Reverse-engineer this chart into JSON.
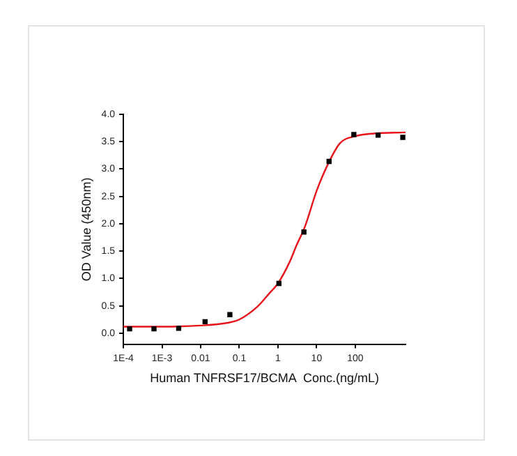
{
  "chart_data": {
    "type": "scatter",
    "xlabel": "Human TNFRSF17/BCMA  Conc.(ng/mL)",
    "ylabel": "OD Value (450nm)",
    "log": "x",
    "xlim": [
      0.0001,
      2000
    ],
    "ylim": [
      -0.2,
      4.0
    ],
    "xticks": [
      {
        "value": 0.0001,
        "label": "1E-4"
      },
      {
        "value": 0.001,
        "label": "1E-3"
      },
      0.01,
      0.1,
      1,
      10,
      100
    ],
    "yticks": [
      {
        "value": 0,
        "label": "0.0"
      },
      0.5,
      {
        "value": 1,
        "label": "1.0"
      },
      1.5,
      {
        "value": 2,
        "label": "2.0"
      },
      2.5,
      {
        "value": 3,
        "label": "3.0"
      },
      3.5,
      {
        "value": 4,
        "label": "4.0"
      }
    ],
    "grid": false,
    "legend": false,
    "marker": "square",
    "series": [
      {
        "type": "scatter",
        "color": "#000000",
        "x": [
          0.000145,
          0.00062,
          0.0027,
          0.013,
          0.057,
          1.06,
          4.7,
          21,
          92,
          390,
          1700
        ],
        "values": [
          0.08,
          0.08,
          0.09,
          0.21,
          0.34,
          0.91,
          1.85,
          3.14,
          3.63,
          3.62,
          3.58
        ]
      },
      {
        "type": "line",
        "color": "#e8141c",
        "marker": "none",
        "x": [
          0.0001,
          0.001,
          0.01,
          0.05,
          0.1,
          0.3,
          0.6,
          1,
          2,
          3,
          5,
          10,
          20,
          40,
          100,
          300,
          2000
        ],
        "values": [
          0.12,
          0.12,
          0.14,
          0.19,
          0.25,
          0.49,
          0.73,
          0.91,
          1.3,
          1.6,
          1.95,
          2.6,
          3.1,
          3.47,
          3.6,
          3.65,
          3.67
        ]
      }
    ]
  }
}
